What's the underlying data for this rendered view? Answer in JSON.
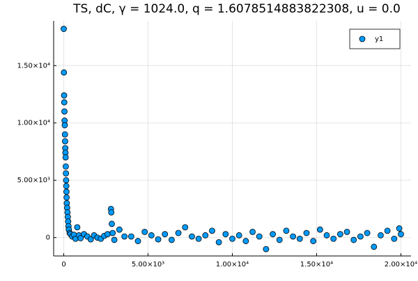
{
  "chart_data": {
    "type": "scatter",
    "title": "TS, dC, γ = 1024.0, q = 1.6078514883822308, u = 0.0",
    "series": [
      {
        "name": "y1",
        "color": "#009af9",
        "x": [
          0,
          10,
          20,
          30,
          40,
          50,
          60,
          70,
          80,
          90,
          100,
          110,
          120,
          130,
          140,
          150,
          160,
          170,
          180,
          200,
          220,
          240,
          260,
          280,
          300,
          350,
          400,
          500,
          600,
          700,
          800,
          900,
          1000,
          1200,
          1400,
          1600,
          1800,
          2000,
          2200,
          2400,
          2600,
          2800,
          2820,
          2850,
          2900,
          3000,
          3300,
          3600,
          4000,
          4400,
          4800,
          5200,
          5600,
          6000,
          6400,
          6800,
          7200,
          7600,
          8000,
          8400,
          8800,
          9200,
          9600,
          10000,
          10400,
          10800,
          11200,
          11600,
          12000,
          12400,
          12800,
          13200,
          13600,
          14000,
          14400,
          14800,
          15200,
          15600,
          16000,
          16400,
          16800,
          17200,
          17600,
          18000,
          18400,
          18800,
          19200,
          19600,
          19900,
          20000
        ],
        "values": [
          18200,
          14400,
          12400,
          11800,
          11000,
          10200,
          9800,
          9000,
          8400,
          7800,
          7400,
          7000,
          6200,
          5600,
          5000,
          4500,
          4000,
          3500,
          3000,
          2600,
          2200,
          1800,
          1400,
          1000,
          700,
          400,
          300,
          100,
          250,
          -100,
          900,
          200,
          -50,
          300,
          100,
          -150,
          200,
          0,
          -100,
          150,
          300,
          2500,
          2200,
          1200,
          400,
          -200,
          700,
          100,
          100,
          -300,
          500,
          200,
          -150,
          300,
          -200,
          400,
          900,
          100,
          -100,
          200,
          600,
          -400,
          300,
          -100,
          200,
          -300,
          500,
          100,
          -1000,
          300,
          -200,
          600,
          100,
          -100,
          400,
          -300,
          700,
          200,
          -100,
          300,
          500,
          -200,
          100,
          400,
          -800,
          200,
          600,
          -100,
          800,
          300
        ]
      }
    ],
    "xlim": [
      -600,
      20600
    ],
    "ylim": [
      -1600,
      18900
    ],
    "xticks": [
      0,
      {
        "value": 5000,
        "label": "5.00×10³"
      },
      {
        "value": 10000,
        "label": "1.00×10⁴"
      },
      {
        "value": 15000,
        "label": "1.50×10⁴"
      },
      {
        "value": 20000,
        "label": "2.00×10⁴"
      }
    ],
    "yticks": [
      0,
      {
        "value": 5000,
        "label": "5.00×10³"
      },
      {
        "value": 10000,
        "label": "1.00×10⁴"
      },
      {
        "value": 15000,
        "label": "1.50×10⁴"
      }
    ],
    "grid": true,
    "legend": "top-right"
  }
}
